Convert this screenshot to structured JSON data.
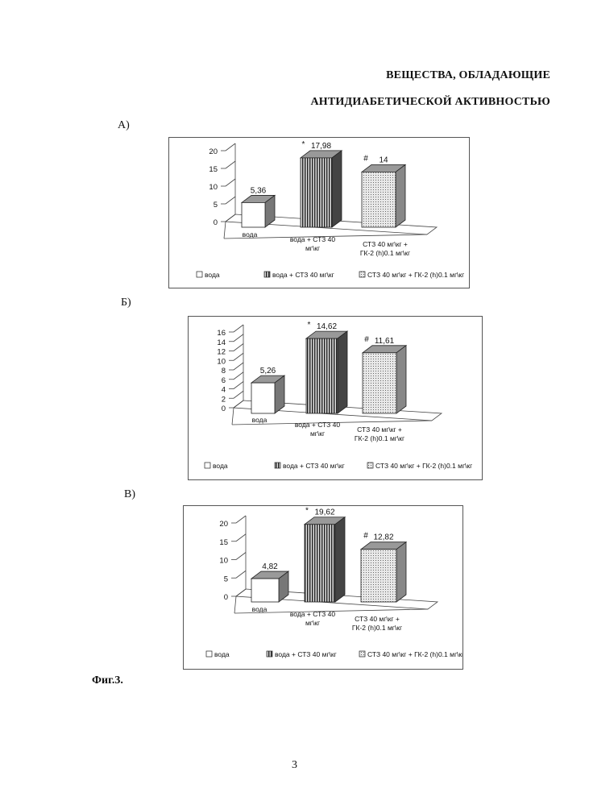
{
  "header": {
    "title_line1": "ВЕЩЕСТВА, ОБЛАДАЮЩИЕ",
    "title_line2": "АНТИДИАБЕТИЧЕСКОЙ АКТИВНОСТЬЮ"
  },
  "figure": {
    "caption": "Фиг.3."
  },
  "page": {
    "number": "3"
  },
  "colors": {
    "frame": "#555555",
    "bar_stroke": "#222222",
    "bar1_fill": "#ffffff",
    "bar2_fill": "#8a8a8a",
    "bar3_fill": "#e8e8e8"
  },
  "chart_data": [
    {
      "panel_label": "А)",
      "type": "bar",
      "categories": [
        [
          "вода"
        ],
        [
          "вода + СТЗ 40",
          "мг\\кг"
        ],
        [
          "СТЗ 40 мг\\кг +",
          "ГК-2 (h)0.1 мг\\кг"
        ]
      ],
      "values": [
        5.36,
        17.98,
        14
      ],
      "data_labels": [
        "5,36",
        "17,98",
        "14"
      ],
      "markers": [
        "",
        "*",
        "#"
      ],
      "yticks": [
        0,
        5,
        10,
        15,
        20
      ],
      "ylim": [
        0,
        20
      ],
      "legend": [
        "вода",
        "вода + СТЗ 40 мг\\кг",
        "СТЗ 40 мг\\кг + ГК-2 (h)0.1 мг\\кг"
      ],
      "legend_position": "bottom"
    },
    {
      "panel_label": "Б)",
      "type": "bar",
      "categories": [
        [
          "вода"
        ],
        [
          "вода + СТЗ 40",
          "мг\\кг"
        ],
        [
          "СТЗ 40 мг\\кг +",
          "ГК-2 (h)0.1 мг\\кг"
        ]
      ],
      "values": [
        5.26,
        14.62,
        11.61
      ],
      "data_labels": [
        "5,26",
        "14,62",
        "11,61"
      ],
      "markers": [
        "",
        "*",
        "#"
      ],
      "yticks": [
        0,
        2,
        4,
        6,
        8,
        10,
        12,
        14,
        16
      ],
      "ylim": [
        0,
        16
      ],
      "legend": [
        "вода",
        "вода + СТЗ 40 мг\\кг",
        "СТЗ 40 мг\\кг + ГК-2 (h)0.1 мг\\кг"
      ],
      "legend_position": "bottom"
    },
    {
      "panel_label": "В)",
      "type": "bar",
      "categories": [
        [
          "вода"
        ],
        [
          "вода + СТЗ 40",
          "мг\\кг"
        ],
        [
          "СТЗ 40 мг\\кг +",
          "ГК-2 (h)0.1 мг\\кг"
        ]
      ],
      "values": [
        4.82,
        19.62,
        12.82
      ],
      "data_labels": [
        "4,82",
        "19,62",
        "12,82"
      ],
      "markers": [
        "",
        "*",
        "#"
      ],
      "yticks": [
        0,
        5,
        10,
        15,
        20
      ],
      "ylim": [
        0,
        20
      ],
      "legend": [
        "вода",
        "вода + СТЗ 40 мг\\кг",
        "СТЗ 40 мг\\кг + ГК-2 (h)0.1 мг\\кг"
      ],
      "legend_position": "bottom"
    }
  ]
}
